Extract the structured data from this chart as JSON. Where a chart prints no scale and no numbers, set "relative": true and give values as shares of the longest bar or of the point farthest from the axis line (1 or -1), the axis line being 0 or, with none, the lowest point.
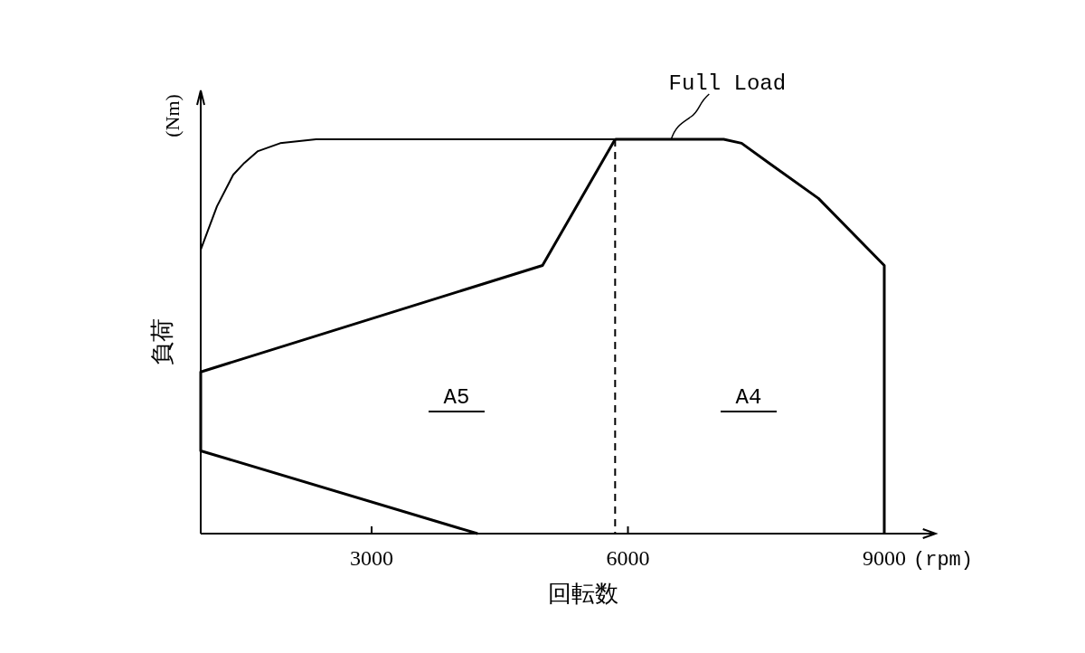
{
  "chart_data": {
    "type": "line",
    "xlabel": "回転数",
    "ylabel": "負荷",
    "relative": true,
    "xlim": [
      1000,
      9600
    ],
    "xticks": [
      3000,
      6000,
      9000
    ],
    "legend": false,
    "marker": "none",
    "series": [
      {
        "name": "Full Load",
        "color": "#000000",
        "x": [
          1000,
          1190,
          1380,
          1510,
          1670,
          1930,
          2350,
          3410,
          5850,
          7120
        ],
        "values": [
          0.72,
          0.83,
          0.91,
          0.94,
          0.97,
          0.99,
          1,
          1,
          1,
          1
        ]
      },
      {
        "color": "#000000",
        "x": [
          5850,
          7120,
          7330,
          7650,
          8230,
          9000,
          9000
        ],
        "values": [
          1,
          1,
          0.99,
          0.94,
          0.85,
          0.68,
          0
        ]
      },
      {
        "color": "#000000",
        "x": [
          5850,
          5000,
          1000,
          1000,
          4240
        ],
        "values": [
          1,
          0.68,
          0.41,
          0.21,
          0
        ]
      },
      {
        "color": "#000000",
        "line_style": "dashed",
        "x": [
          5850,
          5850
        ],
        "values": [
          1,
          0
        ]
      }
    ],
    "annotations": [
      "A5",
      "A4",
      "(rpm)",
      "(Nm)"
    ]
  }
}
